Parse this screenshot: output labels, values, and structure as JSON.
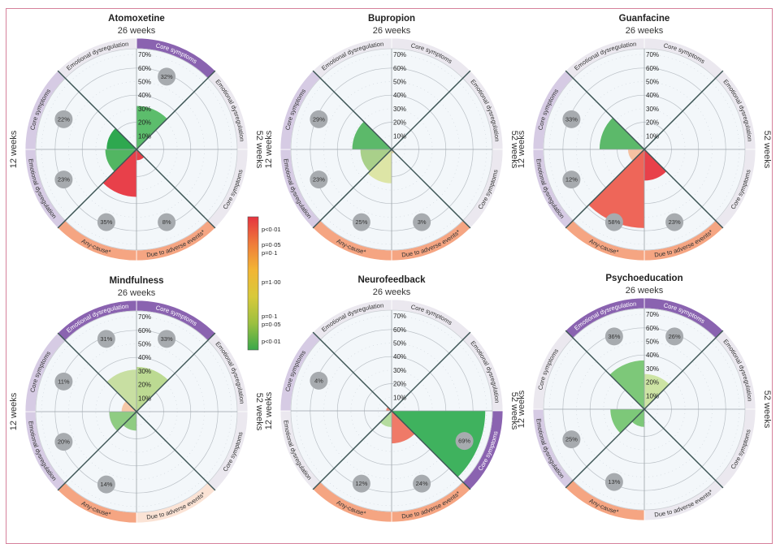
{
  "legend": {
    "labels": [
      "p<0·01",
      "p=0·05",
      "p=0·1",
      "p=1·00",
      "p=0·1",
      "p=0·05",
      "p<0·01"
    ],
    "gradient": [
      "#e5333f",
      "#ef7b3a",
      "#f2b534",
      "#d8c93a",
      "#9cc040",
      "#3aa84a"
    ]
  },
  "band_colors": {
    "significant": "#8a63b0",
    "twelve_weeks": "#d6cbe4",
    "neutral": "#ebe8ef",
    "dropout": "#f5a582",
    "dropout_light": "#fbe3d5"
  },
  "chart_data": [
    {
      "type": "polar-bar",
      "title": "Atomoxetine",
      "top_label": "26 weeks",
      "left_label": "12 weeks",
      "right_label": "52 weeks",
      "radial_ticks": [
        "10%",
        "20%",
        "30%",
        "40%",
        "50%",
        "60%",
        "70%"
      ],
      "rmax": 70,
      "sectors": [
        {
          "label": "Core symptoms",
          "value": 32,
          "value_label": "32%",
          "color": "#5cbd6c",
          "band": "#8a63b0",
          "band_text": "#ffffff"
        },
        {
          "label": "Emotional dysregulation",
          "value": null,
          "value_label": null,
          "color": null,
          "band": "#ebe8ef",
          "band_text": "#333333"
        },
        {
          "label": "Core symptoms",
          "value": null,
          "value_label": null,
          "color": null,
          "band": "#ebe8ef",
          "band_text": "#333333"
        },
        {
          "label": "Due to adverse events*",
          "value": 8,
          "value_label": "8%",
          "color": "#e8404a",
          "band": "#f5a582",
          "band_text": "#333333"
        },
        {
          "label": "Any-cause*",
          "value": 35,
          "value_label": "35%",
          "color": "#e8404a",
          "band": "#f5a582",
          "band_text": "#333333"
        },
        {
          "label": "Emotional dysregulation",
          "value": 23,
          "value_label": "23%",
          "color": "#52b662",
          "band": "#d6cbe4",
          "band_text": "#333333"
        },
        {
          "label": "Core symptoms",
          "value": 22,
          "value_label": "22%",
          "color": "#2ea84f",
          "band": "#d6cbe4",
          "band_text": "#333333"
        },
        {
          "label": "Emotional dysregulation",
          "value": null,
          "value_label": null,
          "color": null,
          "band": "#ebe8ef",
          "band_text": "#333333"
        }
      ]
    },
    {
      "type": "polar-bar",
      "title": "Bupropion",
      "top_label": "26 weeks",
      "left_label": "12 weeks",
      "right_label": "52 weeks",
      "radial_ticks": [
        "10%",
        "20%",
        "30%",
        "40%",
        "50%",
        "60%",
        "70%"
      ],
      "rmax": 70,
      "sectors": [
        {
          "label": "Core symptoms",
          "value": null,
          "value_label": null,
          "color": null,
          "band": "#ebe8ef",
          "band_text": "#333333"
        },
        {
          "label": "Emotional dysregulation",
          "value": null,
          "value_label": null,
          "color": null,
          "band": "#ebe8ef",
          "band_text": "#333333"
        },
        {
          "label": "Core symptoms",
          "value": null,
          "value_label": null,
          "color": null,
          "band": "#ebe8ef",
          "band_text": "#333333"
        },
        {
          "label": "Due to adverse events*",
          "value": 3,
          "value_label": "3%",
          "color": "#efd9a8",
          "band": "#f5a582",
          "band_text": "#333333"
        },
        {
          "label": "Any-cause*",
          "value": 25,
          "value_label": "25%",
          "color": "#dde5a6",
          "band": "#f5a582",
          "band_text": "#333333"
        },
        {
          "label": "Emotional dysregulation",
          "value": 23,
          "value_label": "23%",
          "color": "#a9d08a",
          "band": "#d6cbe4",
          "band_text": "#333333"
        },
        {
          "label": "Core symptoms",
          "value": 29,
          "value_label": "29%",
          "color": "#5cb96a",
          "band": "#d6cbe4",
          "band_text": "#333333"
        },
        {
          "label": "Emotional dysregulation",
          "value": null,
          "value_label": null,
          "color": null,
          "band": "#ebe8ef",
          "band_text": "#333333"
        }
      ]
    },
    {
      "type": "polar-bar",
      "title": "Guanfacine",
      "top_label": "26 weeks",
      "left_label": "12 weeks",
      "right_label": "52 weeks",
      "radial_ticks": [
        "10%",
        "20%",
        "30%",
        "40%",
        "50%",
        "60%",
        "70%"
      ],
      "rmax": 70,
      "sectors": [
        {
          "label": "Core symptoms",
          "value": null,
          "value_label": null,
          "color": null,
          "band": "#ebe8ef",
          "band_text": "#333333"
        },
        {
          "label": "Emotional dysregulation",
          "value": null,
          "value_label": null,
          "color": null,
          "band": "#ebe8ef",
          "band_text": "#333333"
        },
        {
          "label": "Core symptoms",
          "value": null,
          "value_label": null,
          "color": null,
          "band": "#ebe8ef",
          "band_text": "#333333"
        },
        {
          "label": "Due to adverse events*",
          "value": 23,
          "value_label": "23%",
          "color": "#e8404a",
          "band": "#f5a582",
          "band_text": "#333333"
        },
        {
          "label": "Any-cause*",
          "value": 58,
          "value_label": "58%",
          "color": "#ee6659",
          "band": "#f5a582",
          "band_text": "#333333"
        },
        {
          "label": "Emotional dysregulation",
          "value": 12,
          "value_label": "12%",
          "color": "#f5c2a2",
          "band": "#d6cbe4",
          "band_text": "#333333"
        },
        {
          "label": "Core symptoms",
          "value": 33,
          "value_label": "33%",
          "color": "#5cb96a",
          "band": "#d6cbe4",
          "band_text": "#333333"
        },
        {
          "label": "Emotional dysregulation",
          "value": null,
          "value_label": null,
          "color": null,
          "band": "#ebe8ef",
          "band_text": "#333333"
        }
      ]
    },
    {
      "type": "polar-bar",
      "title": "Mindfulness",
      "top_label": "26 weeks",
      "left_label": "12 weeks",
      "right_label": "52 weeks",
      "radial_ticks": [
        "10%",
        "20%",
        "30%",
        "40%",
        "50%",
        "60%",
        "70%"
      ],
      "rmax": 70,
      "sectors": [
        {
          "label": "Core symptoms",
          "value": 33,
          "value_label": "33%",
          "color": "#bcda92",
          "band": "#8a63b0",
          "band_text": "#ffffff"
        },
        {
          "label": "Emotional dysregulation",
          "value": null,
          "value_label": null,
          "color": null,
          "band": "#ebe8ef",
          "band_text": "#333333"
        },
        {
          "label": "Core symptoms",
          "value": null,
          "value_label": null,
          "color": null,
          "band": "#ebe8ef",
          "band_text": "#333333"
        },
        {
          "label": "Due to adverse events*",
          "value": null,
          "value_label": null,
          "color": null,
          "band": "#fbe3d5",
          "band_text": "#333333"
        },
        {
          "label": "Any-cause*",
          "value": 14,
          "value_label": "14%",
          "color": "#8fcc82",
          "band": "#f5a582",
          "band_text": "#333333"
        },
        {
          "label": "Emotional dysregulation",
          "value": 20,
          "value_label": "20%",
          "color": "#8fcc82",
          "band": "#d6cbe4",
          "band_text": "#333333"
        },
        {
          "label": "Core symptoms",
          "value": 11,
          "value_label": "11%",
          "color": "#f6c8a8",
          "band": "#d6cbe4",
          "band_text": "#333333"
        },
        {
          "label": "Emotional dysregulation",
          "value": 31,
          "value_label": "31%",
          "color": "#c8dfa2",
          "band": "#8a63b0",
          "band_text": "#ffffff"
        }
      ]
    },
    {
      "type": "polar-bar",
      "title": "Neurofeedback",
      "top_label": "26 weeks",
      "left_label": "12 weeks",
      "right_label": "52 weeks",
      "radial_ticks": [
        "10%",
        "20%",
        "30%",
        "40%",
        "50%",
        "60%",
        "70%"
      ],
      "rmax": 70,
      "sectors": [
        {
          "label": "Core symptoms",
          "value": null,
          "value_label": null,
          "color": null,
          "band": "#ebe8ef",
          "band_text": "#333333"
        },
        {
          "label": "Emotional dysregulation",
          "value": null,
          "value_label": null,
          "color": null,
          "band": "#ebe8ef",
          "band_text": "#333333"
        },
        {
          "label": "Core symptoms",
          "value": 69,
          "value_label": "69%",
          "color": "#3fb25e",
          "band": "#8a63b0",
          "band_text": "#ffffff"
        },
        {
          "label": "Due to adverse events*",
          "value": 24,
          "value_label": "24%",
          "color": "#ef7a68",
          "band": "#f5a582",
          "band_text": "#333333"
        },
        {
          "label": "Any-cause*",
          "value": 12,
          "value_label": "12%",
          "color": "#b5dc9f",
          "band": "#f5a582",
          "band_text": "#333333"
        },
        {
          "label": "Emotional dysregulation",
          "value": null,
          "value_label": null,
          "color": null,
          "band": "#ebe8ef",
          "band_text": "#333333"
        },
        {
          "label": "Core symptoms",
          "value": 4,
          "value_label": "4%",
          "color": "#ee8a7a",
          "band": "#d6cbe4",
          "band_text": "#333333"
        },
        {
          "label": "Emotional dysregulation",
          "value": null,
          "value_label": null,
          "color": null,
          "band": "#ebe8ef",
          "band_text": "#333333"
        }
      ]
    },
    {
      "type": "polar-bar",
      "title": "Psychoeducation",
      "top_label": "26 weeks",
      "left_label": "12 weeks",
      "right_label": "52 weeks",
      "radial_ticks": [
        "10%",
        "20%",
        "30%",
        "40%",
        "50%",
        "60%",
        "70%"
      ],
      "rmax": 70,
      "sectors": [
        {
          "label": "Core symptoms",
          "value": 26,
          "value_label": "26%",
          "color": "#cde4a4",
          "band": "#8a63b0",
          "band_text": "#ffffff"
        },
        {
          "label": "Emotional dysregulation",
          "value": null,
          "value_label": null,
          "color": null,
          "band": "#ebe8ef",
          "band_text": "#333333"
        },
        {
          "label": "Core symptoms",
          "value": null,
          "value_label": null,
          "color": null,
          "band": "#ebe8ef",
          "band_text": "#333333"
        },
        {
          "label": "Due to adverse events*",
          "value": null,
          "value_label": null,
          "color": null,
          "band": "#ebe8ef",
          "band_text": "#333333"
        },
        {
          "label": "Any-cause*",
          "value": 13,
          "value_label": "13%",
          "color": "#7dc879",
          "band": "#f5a582",
          "band_text": "#333333"
        },
        {
          "label": "Emotional dysregulation",
          "value": 25,
          "value_label": "25%",
          "color": "#7dc879",
          "band": "#d6cbe4",
          "band_text": "#333333"
        },
        {
          "label": "Core symptoms",
          "value": null,
          "value_label": null,
          "color": null,
          "band": "#ebe8ef",
          "band_text": "#333333"
        },
        {
          "label": "Emotional dysregulation",
          "value": 36,
          "value_label": "36%",
          "color": "#7dc879",
          "band": "#8a63b0",
          "band_text": "#ffffff"
        }
      ]
    }
  ]
}
